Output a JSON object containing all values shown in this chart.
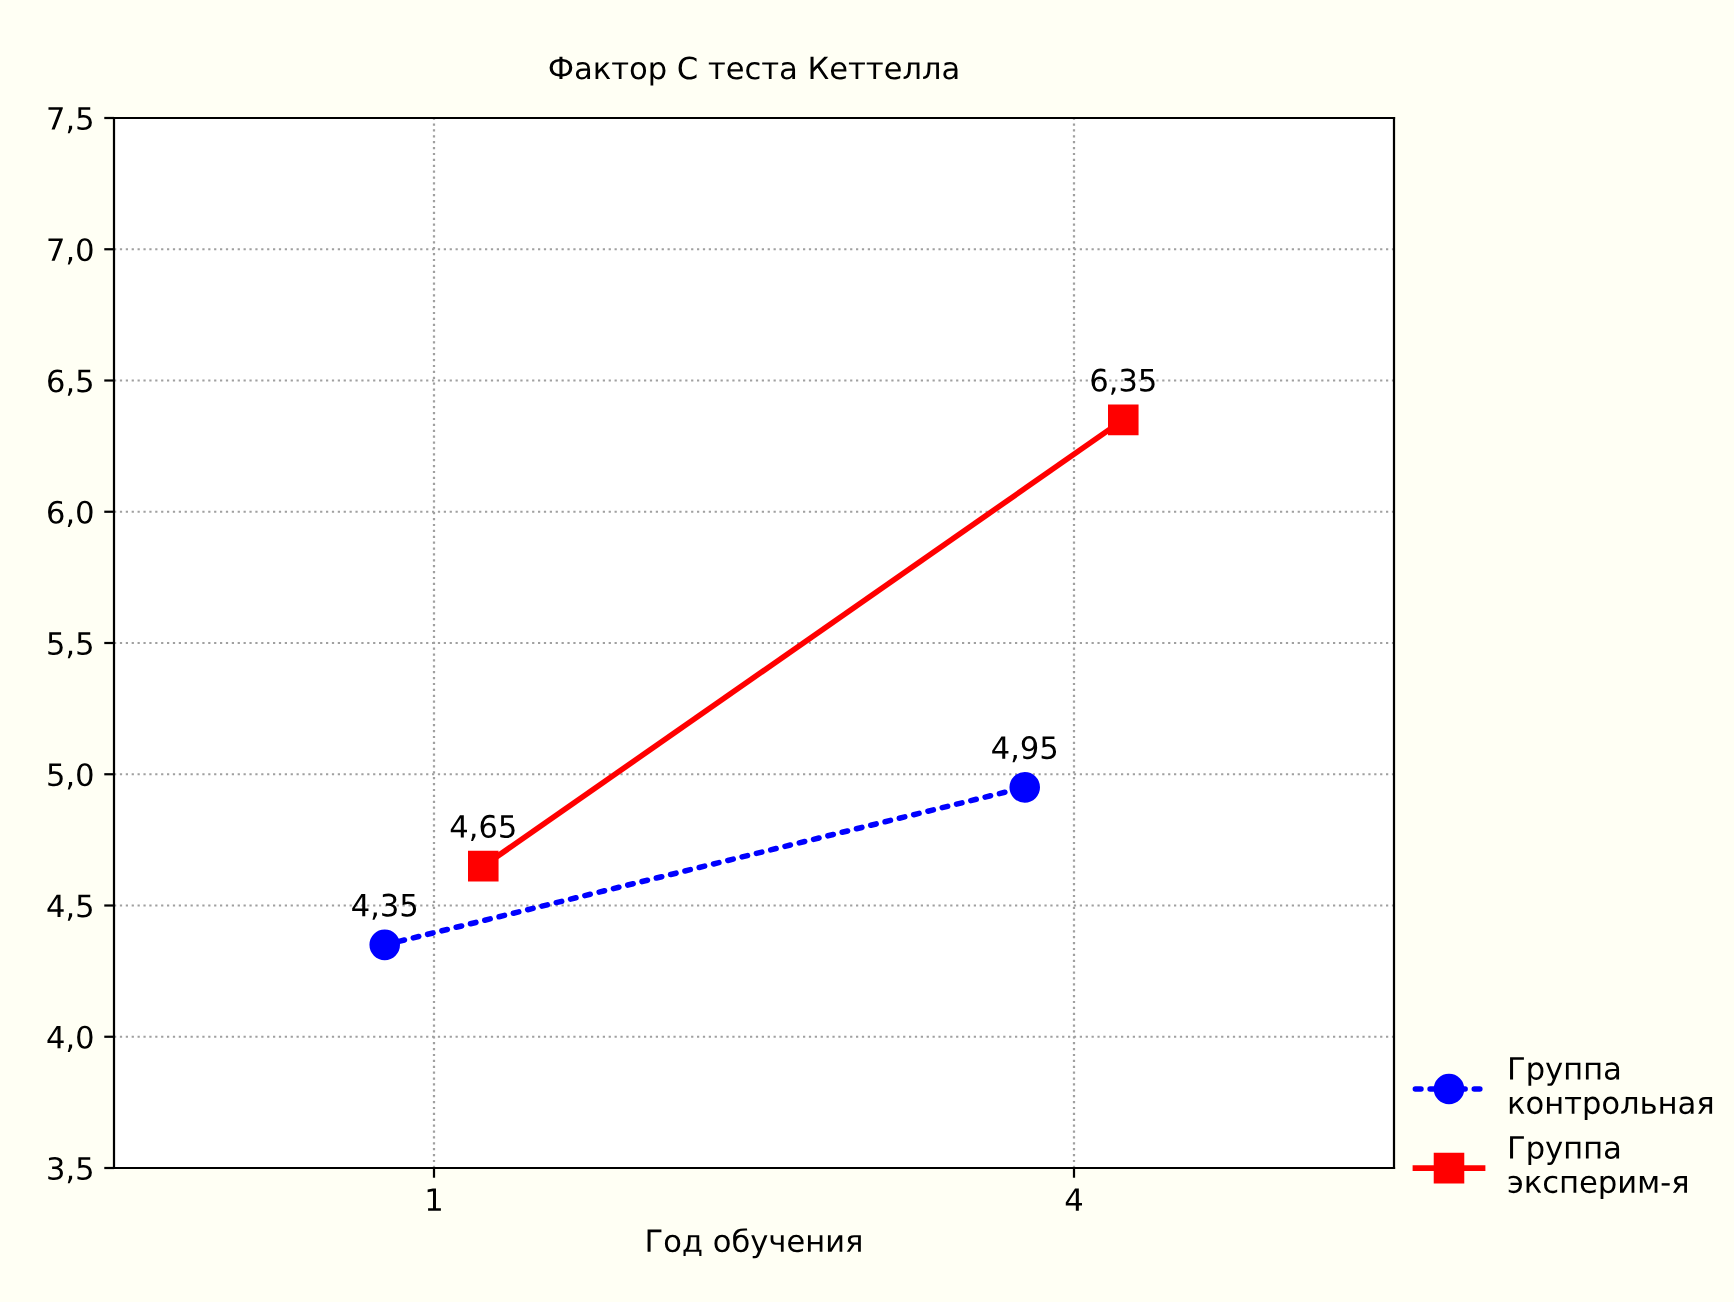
{
  "chart_data": {
    "type": "line",
    "title": "Фактор С теста Кеттелла",
    "xlabel": "Год обучения",
    "categories": [
      "1",
      "4"
    ],
    "series": [
      {
        "name": "Группа\nконтрольная",
        "color": "#0000ff",
        "values": [
          4.35,
          4.95
        ],
        "value_labels": [
          "4,35",
          "4,95"
        ],
        "marker": "circle",
        "line_style": "dotted"
      },
      {
        "name": "Группа\nэксперим-я",
        "color": "#ff0000",
        "values": [
          4.65,
          6.35
        ],
        "value_labels": [
          "4,65",
          "6,35"
        ],
        "marker": "square",
        "line_style": "solid"
      }
    ],
    "ylim": [
      3.5,
      7.5
    ],
    "yticks": [
      {
        "value": 3.5,
        "label": "3,5"
      },
      {
        "value": 4.0,
        "label": "4,0"
      },
      {
        "value": 4.5,
        "label": "4,5"
      },
      {
        "value": 5.0,
        "label": "5,0"
      },
      {
        "value": 5.5,
        "label": "5,5"
      },
      {
        "value": 6.0,
        "label": "6,0"
      },
      {
        "value": 6.5,
        "label": "6,5"
      },
      {
        "value": 7.0,
        "label": "7,0"
      },
      {
        "value": 7.5,
        "label": "7,5"
      }
    ],
    "grid": true,
    "legend": "bottom right"
  }
}
